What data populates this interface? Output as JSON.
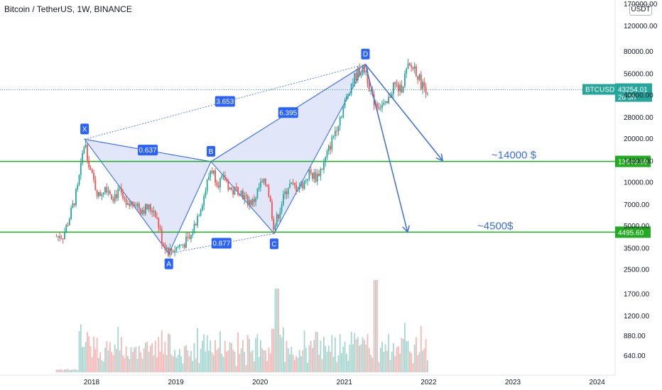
{
  "header": {
    "title": "Bitcoin / TetherUS, 1W, BINANCE",
    "currency": "USDT"
  },
  "colors": {
    "up": "#26a69a",
    "down": "#ef5350",
    "pattern_fill": "#c9d3f2",
    "pattern_edge": "#2962ff",
    "level_line": "#22aa22",
    "arrow": "#3a6fd8",
    "label_bg": "#2962ff"
  },
  "chart_data": {
    "type": "candlestick",
    "y_scale": "log",
    "y_ticks": [
      "170000.00",
      "120000.00",
      "80000.00",
      "56000.00",
      "40000.00",
      "28000.00",
      "20000.00",
      "14000.00",
      "10000.00",
      "7000.00",
      "5000.00",
      "3500.00",
      "2500.00",
      "1700.00",
      "1200.00",
      "880.00",
      "640.00"
    ],
    "x_ticks": [
      "2018",
      "2019",
      "2020",
      "2021",
      "2022",
      "2023",
      "2024"
    ],
    "price_path": [
      {
        "date": "2017-08",
        "price": 4200
      },
      {
        "date": "2017-09",
        "price": 4300
      },
      {
        "date": "2017-10",
        "price": 6000
      },
      {
        "date": "2017-11",
        "price": 9000
      },
      {
        "date": "2017-12",
        "price": 19000
      },
      {
        "date": "2018-01",
        "price": 11000
      },
      {
        "date": "2018-02",
        "price": 8000
      },
      {
        "date": "2018-03",
        "price": 9500
      },
      {
        "date": "2018-04",
        "price": 8000
      },
      {
        "date": "2018-05",
        "price": 8500
      },
      {
        "date": "2018-06",
        "price": 6500
      },
      {
        "date": "2018-07",
        "price": 7500
      },
      {
        "date": "2018-08",
        "price": 6500
      },
      {
        "date": "2018-09",
        "price": 6600
      },
      {
        "date": "2018-10",
        "price": 6400
      },
      {
        "date": "2018-11",
        "price": 4000
      },
      {
        "date": "2018-12",
        "price": 3300
      },
      {
        "date": "2019-01",
        "price": 3500
      },
      {
        "date": "2019-03",
        "price": 4000
      },
      {
        "date": "2019-05",
        "price": 8000
      },
      {
        "date": "2019-06",
        "price": 12500
      },
      {
        "date": "2019-07",
        "price": 10000
      },
      {
        "date": "2019-08",
        "price": 10500
      },
      {
        "date": "2019-09",
        "price": 8500
      },
      {
        "date": "2019-10",
        "price": 9000
      },
      {
        "date": "2019-11",
        "price": 7500
      },
      {
        "date": "2019-12",
        "price": 7200
      },
      {
        "date": "2020-01",
        "price": 9500
      },
      {
        "date": "2020-02",
        "price": 9800
      },
      {
        "date": "2020-03",
        "price": 4800
      },
      {
        "date": "2020-04",
        "price": 7000
      },
      {
        "date": "2020-05",
        "price": 9500
      },
      {
        "date": "2020-06",
        "price": 9200
      },
      {
        "date": "2020-07",
        "price": 9500
      },
      {
        "date": "2020-08",
        "price": 11500
      },
      {
        "date": "2020-09",
        "price": 10800
      },
      {
        "date": "2020-10",
        "price": 13000
      },
      {
        "date": "2020-11",
        "price": 18000
      },
      {
        "date": "2020-12",
        "price": 25000
      },
      {
        "date": "2021-01",
        "price": 34000
      },
      {
        "date": "2021-02",
        "price": 48000
      },
      {
        "date": "2021-03",
        "price": 58000
      },
      {
        "date": "2021-04",
        "price": 60000
      },
      {
        "date": "2021-05",
        "price": 37000
      },
      {
        "date": "2021-06",
        "price": 34000
      },
      {
        "date": "2021-07",
        "price": 33000
      },
      {
        "date": "2021-08",
        "price": 47000
      },
      {
        "date": "2021-09",
        "price": 43000
      },
      {
        "date": "2021-10",
        "price": 61000
      },
      {
        "date": "2021-11",
        "price": 62000
      },
      {
        "date": "2021-12",
        "price": 47000
      },
      {
        "date": "2022-01",
        "price": 43254.01
      }
    ],
    "volume_axis": [
      "1700.00",
      "1200.00",
      "880.00",
      "640.00"
    ],
    "current_price": {
      "symbol": "BTCUSDT",
      "value": "43254.01",
      "time_left": "2d 3h"
    },
    "levels": [
      {
        "value": 13849.99,
        "label": "13849.99",
        "annotation": "~14000 $"
      },
      {
        "value": 4495.6,
        "label": "4495.60",
        "annotation": "~4500$"
      }
    ],
    "pattern_points": [
      {
        "name": "X",
        "date": "2017-12",
        "price": 19700
      },
      {
        "name": "A",
        "date": "2018-12",
        "price": 3200
      },
      {
        "name": "B",
        "date": "2019-06",
        "price": 13800
      },
      {
        "name": "C",
        "date": "2020-03",
        "price": 4400
      },
      {
        "name": "D",
        "date": "2021-04",
        "price": 64800
      }
    ],
    "ratios": [
      {
        "value": "0.637",
        "between": [
          "X",
          "B"
        ]
      },
      {
        "value": "0.877",
        "between": [
          "A",
          "C"
        ]
      },
      {
        "value": "6.395",
        "between": [
          "B",
          "D"
        ]
      },
      {
        "value": "3.653",
        "between": [
          "X",
          "D"
        ]
      }
    ],
    "arrows": [
      {
        "from": {
          "date": "2021-04",
          "price": 64800
        },
        "to": {
          "date": "2022-03",
          "price": 14000
        }
      },
      {
        "from": {
          "date": "2021-04",
          "price": 64800
        },
        "to": {
          "date": "2021-10",
          "price": 4500
        }
      }
    ]
  }
}
